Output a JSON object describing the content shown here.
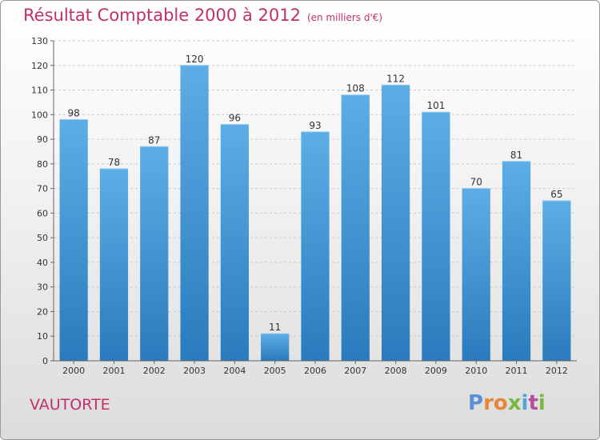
{
  "chart_data": {
    "type": "bar",
    "title": "Résultat Comptable 2000 à 2012",
    "subtitle": "(en milliers d'€)",
    "categories": [
      "2000",
      "2001",
      "2002",
      "2003",
      "2004",
      "2005",
      "2006",
      "2007",
      "2008",
      "2009",
      "2010",
      "2011",
      "2012"
    ],
    "values": [
      98,
      78,
      87,
      120,
      96,
      11,
      93,
      108,
      112,
      101,
      70,
      81,
      65
    ],
    "ylim": [
      0,
      130
    ],
    "yticks": [
      0,
      10,
      20,
      30,
      40,
      50,
      60,
      70,
      80,
      90,
      100,
      110,
      120,
      130
    ],
    "grid": true,
    "xlabel": "",
    "ylabel": ""
  },
  "location": "VAUTORTE",
  "logo": [
    "P",
    "r",
    "o",
    "x",
    "i",
    "t",
    "i"
  ],
  "colors": {
    "bar_top": "#5dade6",
    "bar_bottom": "#2a7bbd",
    "title": "#c0306b"
  }
}
